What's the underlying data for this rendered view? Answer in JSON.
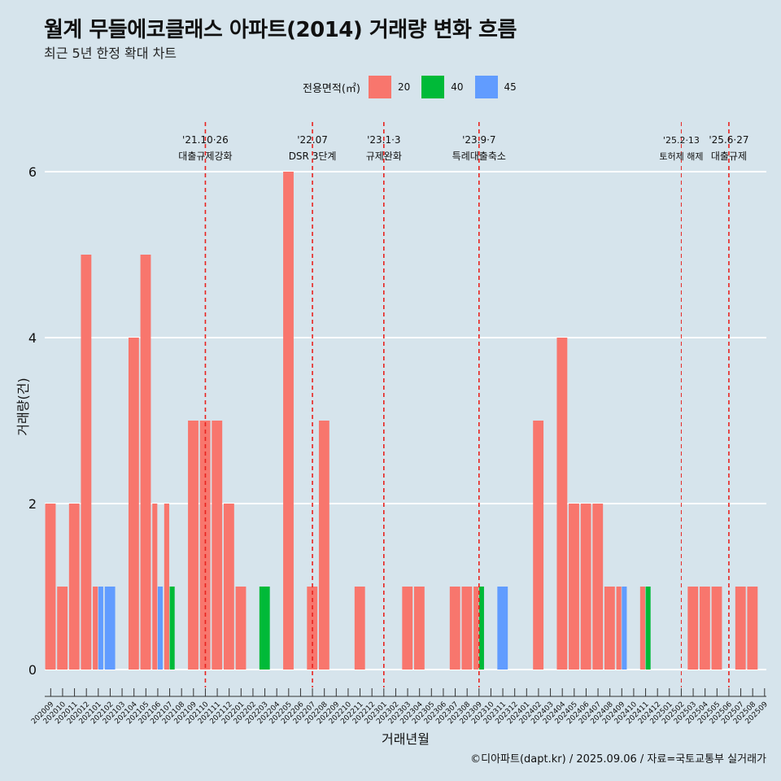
{
  "header": {
    "title": "월계 무들에코클래스 아파트(2014) 거래량 변화 흐름",
    "subtitle": "최근 5년 한정 확대 차트"
  },
  "legend": {
    "title": "전용면적(㎡)",
    "items": [
      {
        "label": "20",
        "color": "#f8766d"
      },
      {
        "label": "40",
        "color": "#00ba38"
      },
      {
        "label": "45",
        "color": "#619cff"
      }
    ]
  },
  "caption": "©디아파트(dapt.kr) / 2025.09.06 / 자료=국토교통부 실거래가",
  "chart_data": {
    "type": "bar",
    "xlabel": "거래년월",
    "ylabel": "거래량(건)",
    "ylim": [
      0,
      6
    ],
    "yticks": [
      0,
      2,
      4,
      6
    ],
    "grid": true,
    "legend_position": "top",
    "categories": [
      "202009",
      "202010",
      "202011",
      "202012",
      "202101",
      "202102",
      "202103",
      "202104",
      "202105",
      "202106",
      "202107",
      "202108",
      "202109",
      "202110",
      "202111",
      "202112",
      "202201",
      "202202",
      "202203",
      "202204",
      "202205",
      "202206",
      "202207",
      "202208",
      "202209",
      "202210",
      "202211",
      "202212",
      "202301",
      "202302",
      "202303",
      "202304",
      "202305",
      "202306",
      "202307",
      "202308",
      "202309",
      "202310",
      "202311",
      "202312",
      "202401",
      "202402",
      "202403",
      "202404",
      "202405",
      "202406",
      "202407",
      "202408",
      "202409",
      "202410",
      "202411",
      "202412",
      "202501",
      "202502",
      "202503",
      "202504",
      "202505",
      "202506",
      "202507",
      "202508",
      "202509"
    ],
    "series": [
      {
        "name": "20",
        "color": "#f8766d",
        "values": [
          2,
          1,
          2,
          5,
          1,
          0,
          0,
          4,
          5,
          2,
          2,
          0,
          3,
          3,
          3,
          2,
          1,
          0,
          0,
          0,
          6,
          0,
          1,
          3,
          0,
          0,
          1,
          0,
          0,
          0,
          1,
          1,
          0,
          0,
          1,
          1,
          1,
          0,
          0,
          0,
          0,
          3,
          0,
          4,
          2,
          2,
          2,
          1,
          1,
          0,
          1,
          0,
          0,
          0,
          1,
          1,
          1,
          0,
          1,
          1,
          0
        ]
      },
      {
        "name": "40",
        "color": "#00ba38",
        "values": [
          0,
          0,
          0,
          0,
          0,
          0,
          0,
          0,
          0,
          0,
          1,
          0,
          0,
          0,
          0,
          0,
          0,
          0,
          1,
          0,
          0,
          0,
          0,
          0,
          0,
          0,
          0,
          0,
          0,
          0,
          0,
          0,
          0,
          0,
          0,
          0,
          1,
          0,
          0,
          0,
          0,
          0,
          0,
          0,
          0,
          0,
          0,
          0,
          0,
          0,
          1,
          0,
          0,
          0,
          0,
          0,
          0,
          0,
          0,
          0,
          0
        ]
      },
      {
        "name": "45",
        "color": "#619cff",
        "values": [
          0,
          0,
          0,
          0,
          1,
          1,
          0,
          0,
          0,
          1,
          0,
          0,
          0,
          0,
          0,
          0,
          0,
          0,
          0,
          0,
          0,
          0,
          0,
          0,
          0,
          0,
          0,
          0,
          0,
          0,
          0,
          0,
          0,
          0,
          0,
          0,
          0,
          0,
          1,
          0,
          0,
          0,
          0,
          0,
          0,
          0,
          0,
          0,
          1,
          0,
          0,
          0,
          0,
          0,
          0,
          0,
          0,
          0,
          0,
          0,
          0
        ]
      }
    ],
    "events": [
      {
        "date": "'21.10·26",
        "label": "대출규제강화",
        "month": "202110"
      },
      {
        "date": "'22.07",
        "label": "DSR 3단계",
        "month": "202207"
      },
      {
        "date": "'23.1·3",
        "label": "규제완화",
        "month": "202301"
      },
      {
        "date": "'23.9·7",
        "label": "특례대출축소",
        "month": "202309"
      },
      {
        "date": "'25.2·13",
        "label": "토허제 해제",
        "month": "202502"
      },
      {
        "date": "'25.6·27",
        "label": "대출규제",
        "month": "202506"
      }
    ]
  }
}
